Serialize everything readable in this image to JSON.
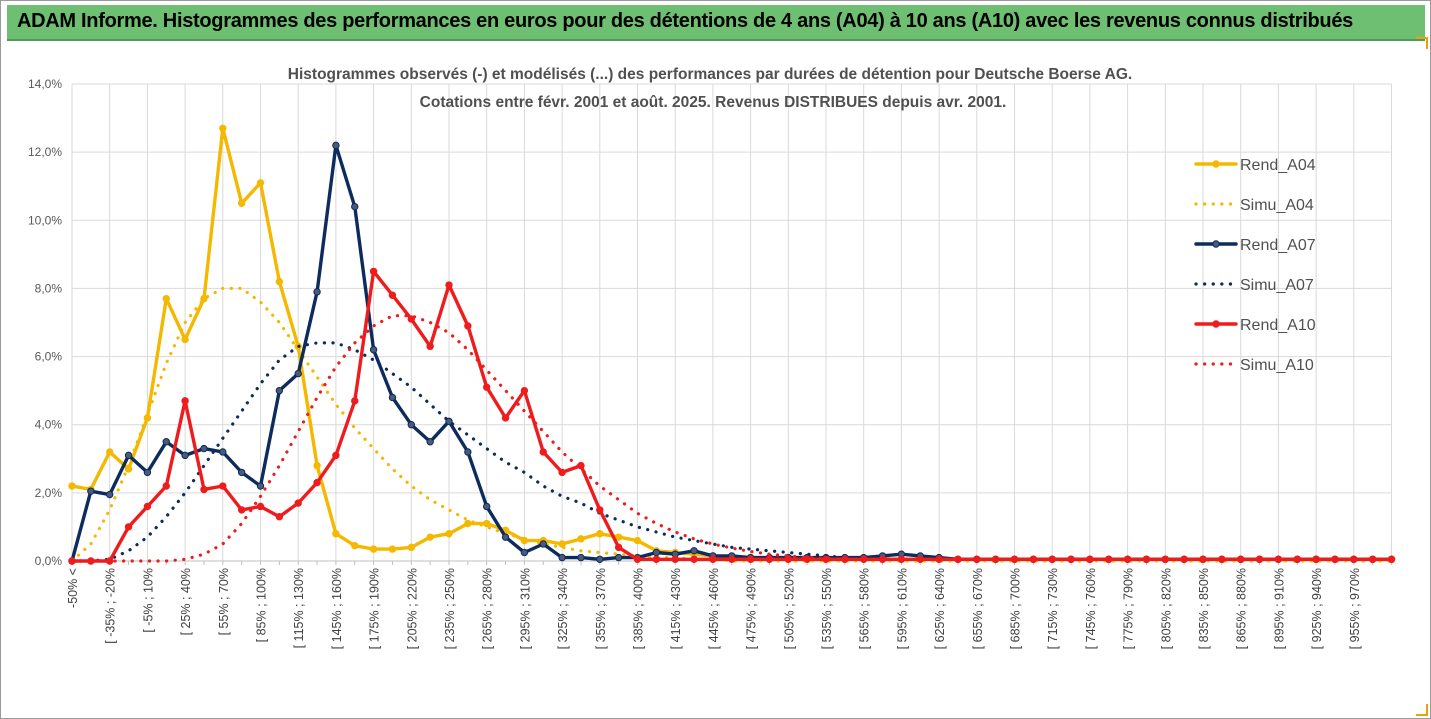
{
  "banner": {
    "title": "ADAM Informe. Histogrammes des performances en euros pour des détentions de 4 ans (A04) à 10 ans (A10) avec les revenus connus distribués"
  },
  "chart_data": {
    "type": "line",
    "title_line1": "Histogrammes observés (-) et modélisés (...) des performances par durées de détention pour Deutsche Boerse AG.",
    "title_line2": "Cotations entre févr. 2001 et août. 2025. Revenus DISTRIBUES depuis avr. 2001.",
    "ylim": [
      0,
      14
    ],
    "ytick_labels": [
      "0,0%",
      "2,0%",
      "4,0%",
      "6,0%",
      "8,0%",
      "10,0%",
      "12,0%",
      "14,0%"
    ],
    "grid": true,
    "legend_position": "right",
    "x_tick_labels": [
      "-50% <",
      "[ -35% ; -20%",
      "[ -5% ; 10%",
      "[ 25% ; 40%",
      "[ 55% ; 70%",
      "[ 85% ; 100%",
      "[ 115% ; 130%",
      "[ 145% ; 160%",
      "[ 175% ; 190%",
      "[ 205% ; 220%",
      "[ 235% ; 250%",
      "[ 265% ; 280%",
      "[ 295% ; 310%",
      "[ 325% ; 340%",
      "[ 355% ; 370%",
      "[ 385% ; 400%",
      "[ 415% ; 430%",
      "[ 445% ; 460%",
      "[ 475% ; 490%",
      "[ 505% ; 520%",
      "[ 535% ; 550%",
      "[ 565% ; 580%",
      "[ 595% ; 610%",
      "[ 625% ; 640%",
      "[ 655% ; 670%",
      "[ 685% ; 700%",
      "[ 715% ; 730%",
      "[ 745% ; 760%",
      "[ 775% ; 790%",
      "[ 805% ; 820%",
      "[ 835% ; 850%",
      "[ 865% ; 880%",
      "[ 895% ; 910%",
      "[ 925% ; 940%",
      "[ 955% ; 970%"
    ],
    "series": [
      {
        "name": "Rend_A04",
        "style": "solid",
        "color": "#f5b800",
        "values": [
          2.2,
          2.1,
          3.2,
          2.7,
          4.2,
          7.7,
          6.5,
          7.7,
          12.7,
          10.5,
          11.1,
          8.2,
          6.3,
          2.8,
          0.8,
          0.45,
          0.35,
          0.35,
          0.4,
          0.7,
          0.8,
          1.1,
          1.1,
          0.9,
          0.6,
          0.6,
          0.5,
          0.65,
          0.8,
          0.7,
          0.6,
          0.3,
          0.25,
          0.2,
          0.15,
          0.1,
          0.1,
          0.05,
          0.05,
          0.05,
          0.05,
          0.05,
          0.05,
          0.05,
          0.05,
          0.05,
          0.05,
          0.05,
          0.05,
          0.05,
          0.05,
          0.05,
          0.05,
          0.05,
          0.05,
          0.05,
          0.05,
          0.05,
          0.05,
          0.05,
          0.05,
          0.05,
          0.05,
          0.05,
          0.05,
          0.05,
          0.05,
          0.05,
          0.05,
          0.05,
          0.05
        ]
      },
      {
        "name": "Simu_A04",
        "style": "dotted",
        "color": "#f5b800",
        "values": [
          0.0,
          0.5,
          1.5,
          2.8,
          4.3,
          5.8,
          7.0,
          7.7,
          8.0,
          8.0,
          7.6,
          7.0,
          6.2,
          5.4,
          4.6,
          3.9,
          3.3,
          2.7,
          2.2,
          1.8,
          1.5,
          1.2,
          1.0,
          0.8,
          0.65,
          0.5,
          0.4,
          0.3,
          0.25,
          0.2,
          0.15,
          0.1,
          0.1,
          0.05,
          0.05,
          0.0,
          0.0,
          0.0,
          0.0,
          0.0,
          0.0,
          0.0,
          0.0,
          0.0,
          0.0,
          0.0,
          0.0,
          0.0,
          0.0,
          0.0,
          0.0,
          0.0,
          0.0,
          0.0,
          0.0,
          0.0,
          0.0,
          0.0,
          0.0,
          0.0,
          0.0,
          0.0,
          0.0,
          0.0,
          0.0,
          0.0,
          0.0,
          0.0,
          0.0,
          0.0,
          0.0
        ]
      },
      {
        "name": "Rend_A07",
        "style": "solid",
        "color": "#0d2b5c",
        "values": [
          0.0,
          2.05,
          1.95,
          3.1,
          2.6,
          3.5,
          3.1,
          3.3,
          3.2,
          2.6,
          2.2,
          5.0,
          5.5,
          7.9,
          12.2,
          10.4,
          6.2,
          4.8,
          4.0,
          3.5,
          4.1,
          3.2,
          1.6,
          0.7,
          0.25,
          0.5,
          0.1,
          0.1,
          0.05,
          0.1,
          0.1,
          0.25,
          0.2,
          0.3,
          0.15,
          0.15,
          0.1,
          0.1,
          0.1,
          0.1,
          0.1,
          0.1,
          0.1,
          0.15,
          0.2,
          0.15,
          0.1,
          0.05,
          0.05,
          0.05,
          0.05,
          0.05,
          0.05,
          0.05,
          0.05,
          0.05,
          0.05,
          0.05,
          0.05,
          0.05,
          0.05,
          0.05,
          0.05,
          0.05,
          0.05,
          0.05,
          0.05,
          0.05,
          0.05,
          0.05,
          0.05
        ]
      },
      {
        "name": "Simu_A07",
        "style": "dotted",
        "color": "#0d2b5c",
        "values": [
          0.0,
          0.0,
          0.05,
          0.3,
          0.7,
          1.3,
          2.0,
          2.8,
          3.6,
          4.4,
          5.2,
          5.9,
          6.3,
          6.4,
          6.4,
          6.2,
          5.9,
          5.5,
          5.1,
          4.6,
          4.1,
          3.7,
          3.3,
          2.9,
          2.6,
          2.2,
          1.9,
          1.7,
          1.4,
          1.2,
          1.0,
          0.85,
          0.7,
          0.6,
          0.5,
          0.4,
          0.35,
          0.3,
          0.25,
          0.2,
          0.15,
          0.1,
          0.1,
          0.05,
          0.05,
          0.05,
          0.05,
          0.05,
          0.05,
          0.05,
          0.05,
          0.05,
          0.05,
          0.05,
          0.05,
          0.05,
          0.05,
          0.05,
          0.05,
          0.05,
          0.05,
          0.05,
          0.05,
          0.05,
          0.05,
          0.05,
          0.05,
          0.05,
          0.05,
          0.05,
          0.05
        ]
      },
      {
        "name": "Rend_A10",
        "style": "solid",
        "color": "#ee1c1c",
        "values": [
          0.0,
          0.0,
          0.0,
          1.0,
          1.6,
          2.2,
          4.7,
          2.1,
          2.2,
          1.5,
          1.6,
          1.3,
          1.7,
          2.3,
          3.1,
          4.7,
          8.5,
          7.8,
          7.1,
          6.3,
          8.1,
          6.9,
          5.1,
          4.2,
          5.0,
          3.2,
          2.6,
          2.8,
          1.5,
          0.4,
          0.05,
          0.05,
          0.05,
          0.05,
          0.05,
          0.05,
          0.05,
          0.05,
          0.05,
          0.05,
          0.05,
          0.05,
          0.05,
          0.05,
          0.05,
          0.05,
          0.05,
          0.05,
          0.05,
          0.05,
          0.05,
          0.05,
          0.05,
          0.05,
          0.05,
          0.05,
          0.05,
          0.05,
          0.05,
          0.05,
          0.05,
          0.05,
          0.05,
          0.05,
          0.05,
          0.05,
          0.05,
          0.05,
          0.05,
          0.05,
          0.05
        ]
      },
      {
        "name": "Simu_A10",
        "style": "dotted",
        "color": "#ee1c1c",
        "values": [
          0.0,
          0.0,
          0.0,
          0.0,
          0.0,
          0.0,
          0.05,
          0.2,
          0.5,
          1.1,
          1.9,
          2.8,
          3.8,
          4.8,
          5.7,
          6.4,
          6.9,
          7.2,
          7.2,
          7.0,
          6.7,
          6.2,
          5.6,
          5.0,
          4.4,
          3.8,
          3.2,
          2.7,
          2.2,
          1.8,
          1.4,
          1.1,
          0.85,
          0.65,
          0.5,
          0.38,
          0.28,
          0.2,
          0.15,
          0.1,
          0.08,
          0.05,
          0.05,
          0.05,
          0.05,
          0.05,
          0.05,
          0.05,
          0.05,
          0.05,
          0.05,
          0.05,
          0.05,
          0.05,
          0.05,
          0.05,
          0.05,
          0.05,
          0.05,
          0.05,
          0.05,
          0.05,
          0.05,
          0.05,
          0.05,
          0.05,
          0.05,
          0.05,
          0.05,
          0.05,
          0.05
        ]
      }
    ]
  }
}
